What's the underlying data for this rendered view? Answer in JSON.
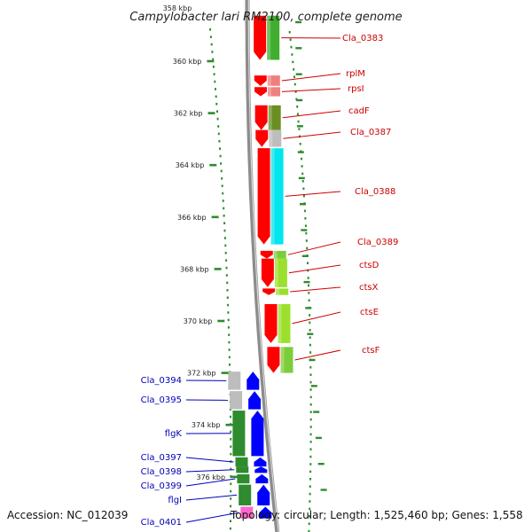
{
  "title": "Campylobacter lari RM2100, complete genome",
  "top_tick_label": "358 kbp",
  "ticks": [
    {
      "label": "360 kbp",
      "kbp": 360
    },
    {
      "label": "362 kbp",
      "kbp": 362
    },
    {
      "label": "364 kbp",
      "kbp": 364
    },
    {
      "label": "366 kbp",
      "kbp": 366
    },
    {
      "label": "368 kbp",
      "kbp": 368
    },
    {
      "label": "370 kbp",
      "kbp": 370
    },
    {
      "label": "372 kbp",
      "kbp": 372
    },
    {
      "label": "374 kbp",
      "kbp": 374
    },
    {
      "label": "376 kbp",
      "kbp": 376
    }
  ],
  "forward_genes": [
    {
      "name": "Cla_0383",
      "start": 358.25,
      "end": 359.95,
      "cog": "#3fae2e"
    },
    {
      "name": "rplM",
      "start": 360.55,
      "end": 360.95,
      "cog": "#f07f7f"
    },
    {
      "name": "rpsI",
      "start": 361.0,
      "end": 361.35,
      "cog": "#f07f7f"
    },
    {
      "name": "cadF",
      "start": 361.7,
      "end": 362.65,
      "cog": "#6b8e23"
    },
    {
      "name": "Cla_0387",
      "start": 362.65,
      "end": 363.3,
      "cog": "#bdbdbd"
    },
    {
      "name": "Cla_0388",
      "start": 363.35,
      "end": 367.05,
      "cog": "#00e5ee"
    },
    {
      "name": "Cla_0389",
      "start": 367.3,
      "end": 367.6,
      "cog": "#7ccd3c"
    },
    {
      "name": "ctsD",
      "start": 367.6,
      "end": 368.7,
      "cog": "#9be02d"
    },
    {
      "name": "ctsX",
      "start": 368.75,
      "end": 369.0,
      "cog": "#9be02d"
    },
    {
      "name": "ctsE",
      "start": 369.35,
      "end": 370.85,
      "cog": "#9be02d"
    },
    {
      "name": "ctsF",
      "start": 371.0,
      "end": 372.0,
      "cog": "#7ccd3c"
    }
  ],
  "reverse_genes": [
    {
      "name": "Cla_0394",
      "start": 371.95,
      "end": 372.65,
      "cog": "#bdbdbd"
    },
    {
      "name": "Cla_0395",
      "start": 372.7,
      "end": 373.4,
      "cog": "#bdbdbd"
    },
    {
      "name": "flgK",
      "start": 373.45,
      "end": 375.2,
      "cog": "#2e8b2e"
    },
    {
      "name": "Cla_0397",
      "start": 375.25,
      "end": 375.6,
      "cog": "#2e8b2e"
    },
    {
      "name": "Cla_0398",
      "start": 375.6,
      "end": 375.85,
      "cog": "#2e8b2e"
    },
    {
      "name": "Cla_0399",
      "start": 375.9,
      "end": 376.25,
      "cog": "#2e8b2e"
    },
    {
      "name": "flgI",
      "start": 376.3,
      "end": 377.1,
      "cog": "#2e8b2e"
    },
    {
      "name": "Cla_0401",
      "start": 377.15,
      "end": 377.6,
      "cog": "#ff66cc"
    }
  ],
  "colors": {
    "forward_cds": "#ff0000",
    "reverse_cds": "#0000ff",
    "backbone": "#8c8c8c",
    "plot_dots": "#2e8b2e",
    "forward_label": "#cc0000",
    "reverse_label": "#0000bb"
  },
  "footer": {
    "accession": "Accession: NC_012039",
    "topology": "Topology: circular; Length: 1,525,460 bp; Genes: 1,558"
  }
}
